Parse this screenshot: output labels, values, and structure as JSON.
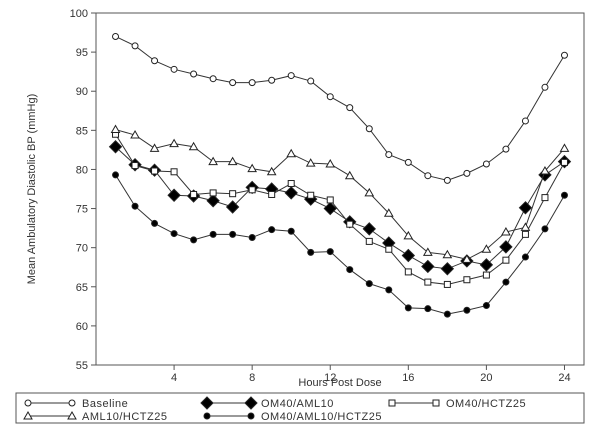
{
  "chart_data": {
    "type": "line",
    "xlabel": "Hours Post Dose",
    "ylabel": "Mean Ambulatory Diastolic BP (mmHg)",
    "xlim": [
      0,
      25
    ],
    "ylim": [
      55,
      100
    ],
    "x_ticks": [
      4,
      8,
      12,
      16,
      20,
      24
    ],
    "y_ticks": [
      55,
      60,
      65,
      70,
      75,
      80,
      85,
      90,
      95,
      100
    ],
    "grid": false,
    "legend_placement": "bottom",
    "x": [
      1,
      2,
      3,
      4,
      5,
      6,
      7,
      8,
      9,
      10,
      11,
      12,
      13,
      14,
      15,
      16,
      17,
      18,
      19,
      20,
      21,
      22,
      23,
      24
    ],
    "series": [
      {
        "name": "Baseline",
        "marker": "circle-open",
        "values": [
          97.0,
          95.8,
          93.9,
          92.8,
          92.2,
          91.6,
          91.1,
          91.1,
          91.4,
          92.0,
          91.3,
          89.3,
          87.9,
          85.2,
          81.9,
          80.9,
          79.2,
          78.6,
          79.5,
          80.7,
          82.6,
          86.2,
          90.5,
          94.6
        ]
      },
      {
        "name": "OM40/AML10",
        "marker": "diamond-filled",
        "values": [
          82.9,
          80.6,
          79.9,
          76.7,
          76.6,
          76.0,
          75.2,
          77.7,
          77.5,
          77.0,
          76.2,
          75.0,
          73.3,
          72.4,
          70.6,
          69.0,
          67.6,
          67.3,
          68.3,
          67.8,
          70.1,
          75.1,
          79.3,
          81.0
        ]
      },
      {
        "name": "OM40/HCTZ25",
        "marker": "square-open",
        "values": [
          84.5,
          80.5,
          79.8,
          79.7,
          76.8,
          77.0,
          76.9,
          77.4,
          76.8,
          78.2,
          76.7,
          76.1,
          73.0,
          70.8,
          69.8,
          66.9,
          65.6,
          65.3,
          65.9,
          66.5,
          68.4,
          71.7,
          76.4,
          80.9
        ]
      },
      {
        "name": "AML10/HCTZ25",
        "marker": "triangle-open",
        "values": [
          85.1,
          84.4,
          82.7,
          83.3,
          82.9,
          81.0,
          81.0,
          80.1,
          79.7,
          82.0,
          80.8,
          80.7,
          79.2,
          77.0,
          74.4,
          71.5,
          69.4,
          69.1,
          68.5,
          69.8,
          72.0,
          72.6,
          79.8,
          82.7
        ]
      },
      {
        "name": "OM40/AML10/HCTZ25",
        "marker": "circle-filled",
        "values": [
          79.3,
          75.3,
          73.1,
          71.8,
          71.0,
          71.7,
          71.7,
          71.3,
          72.3,
          72.1,
          69.4,
          69.5,
          67.2,
          65.4,
          64.6,
          62.3,
          62.2,
          61.5,
          62.0,
          62.6,
          65.6,
          68.8,
          72.4,
          76.7
        ]
      }
    ]
  }
}
